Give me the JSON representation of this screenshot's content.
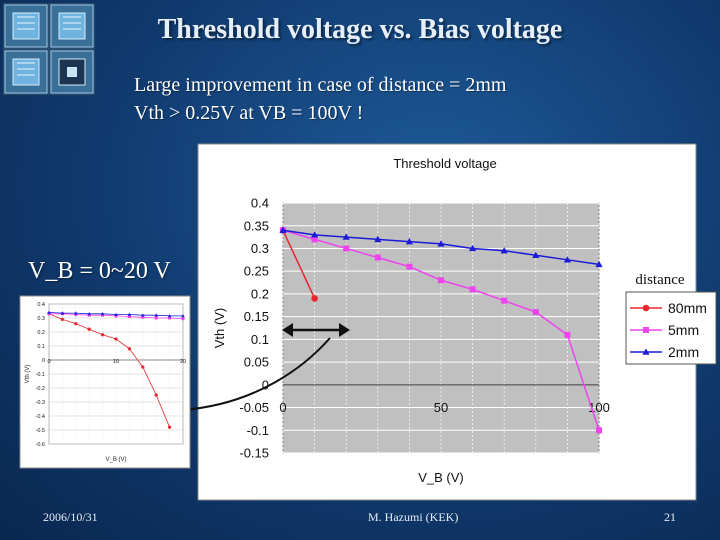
{
  "slide": {
    "title": "Threshold voltage vs. Bias voltage",
    "line1": "Large improvement in case of distance = 2mm",
    "line2": "Vth > 0.25V at VB = 100V !",
    "side_label": "V_B = 0~20 V",
    "footer": {
      "date": "2006/10/31",
      "author": "M. Hazumi (KEK)",
      "page": "21"
    }
  },
  "chart_data": [
    {
      "type": "line",
      "title": "Threshold voltage",
      "xlabel": "V_B (V)",
      "ylabel": "Vth (V)",
      "xlim": [
        0,
        100
      ],
      "ylim": [
        -0.15,
        0.4
      ],
      "xticks": [
        "0",
        "50",
        "100"
      ],
      "yticks": [
        "0.4",
        "0.35",
        "0.3",
        "0.25",
        "0.2",
        "0.15",
        "0.1",
        "0.05",
        "0",
        "-0.05",
        "-0.1",
        "-0.15"
      ],
      "grid": true,
      "legend_title": "distance",
      "legend_position": "right",
      "series": [
        {
          "name": "80mm",
          "color": "#e8282e",
          "marker": "circle",
          "x": [
            0,
            10
          ],
          "y": [
            0.34,
            0.19
          ]
        },
        {
          "name": "5mm",
          "color": "#ee44ee",
          "marker": "square",
          "x": [
            0,
            10,
            20,
            30,
            40,
            50,
            60,
            70,
            80,
            90,
            100
          ],
          "y": [
            0.34,
            0.32,
            0.3,
            0.28,
            0.26,
            0.23,
            0.21,
            0.185,
            0.16,
            0.11,
            -0.1
          ]
        },
        {
          "name": "2mm",
          "color": "#1c1cd8",
          "marker": "triangle",
          "x": [
            0,
            10,
            20,
            30,
            40,
            50,
            60,
            70,
            80,
            90,
            100
          ],
          "y": [
            0.34,
            0.33,
            0.325,
            0.32,
            0.315,
            0.31,
            0.3,
            0.295,
            0.285,
            0.275,
            0.265
          ]
        }
      ]
    },
    {
      "type": "line",
      "title": "",
      "xlabel": "V_B (V)",
      "ylabel": "Vth (V)",
      "xlim": [
        0,
        20
      ],
      "ylim": [
        -0.6,
        0.4
      ],
      "xticks": [
        "0",
        "10",
        "20"
      ],
      "yticks": [
        "0.4",
        "0.3",
        "0.2",
        "0.1",
        "0",
        "-0.1",
        "-0.2",
        "-0.3",
        "-0.4",
        "-0.5",
        "-0.6"
      ],
      "grid": true,
      "series": [
        {
          "name": "",
          "color": "#e8282e",
          "marker": "circle",
          "x": [
            0,
            2,
            4,
            6,
            8,
            10,
            12,
            14,
            16,
            18
          ],
          "y": [
            0.33,
            0.29,
            0.26,
            0.22,
            0.18,
            0.15,
            0.08,
            -0.05,
            -0.25,
            -0.48
          ]
        },
        {
          "name": "",
          "color": "#ee44ee",
          "marker": "square",
          "x": [
            0,
            2,
            4,
            6,
            8,
            10,
            12,
            14,
            16,
            18,
            20
          ],
          "y": [
            0.33,
            0.33,
            0.325,
            0.32,
            0.32,
            0.315,
            0.31,
            0.305,
            0.3,
            0.3,
            0.295
          ]
        },
        {
          "name": "",
          "color": "#1c1cd8",
          "marker": "triangle",
          "x": [
            0,
            2,
            4,
            6,
            8,
            10,
            12,
            14,
            16,
            18,
            20
          ],
          "y": [
            0.34,
            0.335,
            0.335,
            0.33,
            0.33,
            0.325,
            0.325,
            0.32,
            0.32,
            0.315,
            0.315
          ]
        }
      ]
    }
  ]
}
